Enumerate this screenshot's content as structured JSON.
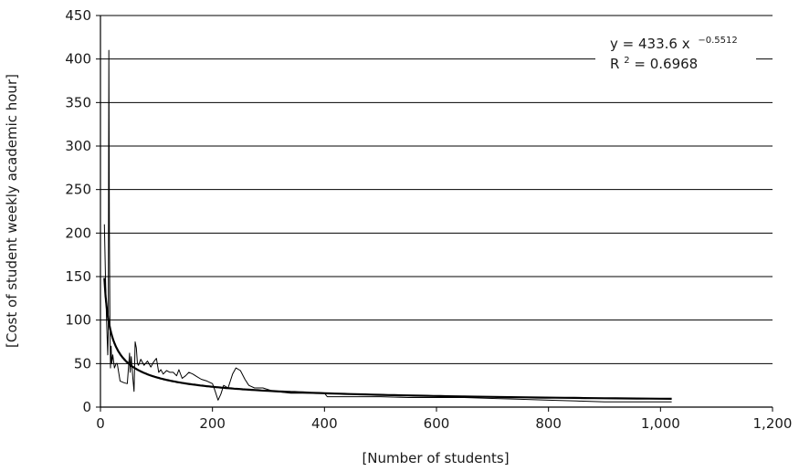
{
  "chart_data": {
    "type": "line",
    "xlabel": "[Number of students]",
    "ylabel": "[Cost of student weekly academic hour]",
    "xlim": [
      0,
      1200
    ],
    "ylim": [
      0,
      450
    ],
    "x_ticks": [
      0,
      200,
      400,
      600,
      800,
      1000,
      1200
    ],
    "x_tick_labels": [
      "0",
      "200",
      "400",
      "600",
      "800",
      "1,000",
      "1,200"
    ],
    "y_ticks": [
      0,
      50,
      100,
      150,
      200,
      250,
      300,
      350,
      400,
      450
    ],
    "y_tick_labels": [
      "0",
      "50",
      "100",
      "150",
      "200",
      "250",
      "300",
      "350",
      "400",
      "450"
    ],
    "grid": "horizontal",
    "trendline": {
      "type": "power",
      "coefficient": 433.6,
      "exponent": -0.5512,
      "equation_text": "y = 433.6 x",
      "exponent_text": "−0.5512",
      "r2_prefix": "R",
      "r2_sup": "2",
      "r2_text": " = 0.6968",
      "r2": 0.6968
    },
    "series": [
      {
        "x": [
          7,
          9,
          11,
          13,
          14,
          15,
          16,
          17,
          18,
          19,
          20,
          22,
          25,
          28,
          30,
          35,
          42,
          48,
          52,
          53,
          55,
          57,
          58,
          60,
          62,
          64,
          66,
          68,
          72,
          78,
          84,
          90,
          95,
          100,
          104,
          108,
          112,
          118,
          124,
          130,
          136,
          140,
          146,
          152,
          158,
          165,
          172,
          180,
          190,
          200,
          205,
          210,
          215,
          220,
          228,
          236,
          242,
          250,
          258,
          265,
          275,
          290,
          310,
          340,
          370,
          400,
          405,
          450,
          500,
          550,
          600,
          650,
          700,
          750,
          800,
          850,
          900,
          950,
          1000,
          1020
        ],
        "values": [
          210,
          150,
          100,
          60,
          90,
          410,
          200,
          95,
          45,
          70,
          50,
          60,
          45,
          50,
          50,
          30,
          28,
          27,
          62,
          40,
          58,
          40,
          32,
          18,
          75,
          68,
          50,
          48,
          55,
          48,
          53,
          46,
          52,
          56,
          40,
          43,
          38,
          42,
          40,
          40,
          36,
          43,
          33,
          36,
          40,
          38,
          35,
          32,
          30,
          27,
          18,
          8,
          15,
          25,
          22,
          38,
          45,
          42,
          32,
          25,
          22,
          22,
          18,
          16,
          16,
          16,
          12,
          12,
          12,
          11,
          11,
          11,
          10,
          9,
          8,
          7,
          6,
          6,
          6,
          6
        ]
      }
    ]
  }
}
